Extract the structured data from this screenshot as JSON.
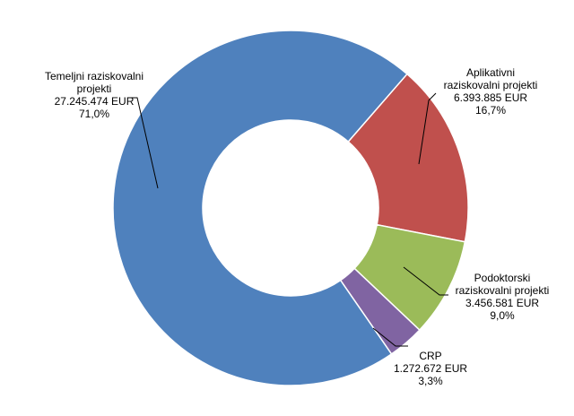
{
  "chart_data": {
    "type": "pie",
    "style": "donut",
    "title": "",
    "colors": {
      "temeljni": "#4F81BD",
      "aplikativni": "#C0504D",
      "podoktorski": "#9BBB59",
      "crp": "#8064A2",
      "leader": "#000000"
    },
    "slices": [
      {
        "key": "temeljni",
        "label_lines": [
          "Temeljni raziskovalni",
          "projekti"
        ],
        "value": 27245474,
        "value_text": "27.245.474 EUR",
        "percent": 71.0,
        "percent_text": "71,0%"
      },
      {
        "key": "aplikativni",
        "label_lines": [
          "Aplikativni",
          "raziskovalni projekti"
        ],
        "value": 6393885,
        "value_text": "6.393.885 EUR",
        "percent": 16.7,
        "percent_text": "16,7%"
      },
      {
        "key": "podoktorski",
        "label_lines": [
          "Podoktorski",
          "raziskovalni projekti"
        ],
        "value": 3456581,
        "value_text": "3.456.581 EUR",
        "percent": 9.0,
        "percent_text": "9,0%"
      },
      {
        "key": "crp",
        "label_lines": [
          "CRP"
        ],
        "value": 1272672,
        "value_text": "1.272.672 EUR",
        "percent": 3.3,
        "percent_text": "3,3%"
      }
    ]
  }
}
